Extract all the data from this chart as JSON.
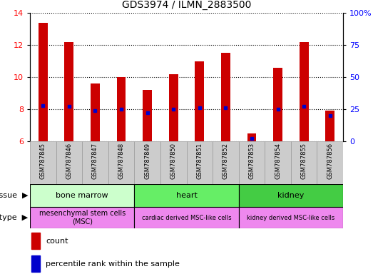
{
  "title": "GDS3974 / ILMN_2883500",
  "samples": [
    "GSM787845",
    "GSM787846",
    "GSM787847",
    "GSM787848",
    "GSM787849",
    "GSM787850",
    "GSM787851",
    "GSM787852",
    "GSM787853",
    "GSM787854",
    "GSM787855",
    "GSM787856"
  ],
  "count_values": [
    13.4,
    12.2,
    9.6,
    10.0,
    9.2,
    10.2,
    11.0,
    11.5,
    6.5,
    10.6,
    12.2,
    7.9
  ],
  "percentile_values": [
    28,
    27,
    24,
    25,
    22,
    25,
    26,
    26,
    2,
    25,
    27,
    20
  ],
  "ylim_left": [
    6,
    14
  ],
  "ylim_right": [
    0,
    100
  ],
  "yticks_left": [
    6,
    8,
    10,
    12,
    14
  ],
  "yticks_right": [
    0,
    25,
    50,
    75,
    100
  ],
  "bar_color": "#cc0000",
  "dot_color": "#0000cc",
  "bar_width": 0.35,
  "tissue_groups": [
    {
      "label": "bone marrow",
      "start": 0,
      "end": 3,
      "color": "#ccffcc"
    },
    {
      "label": "heart",
      "start": 4,
      "end": 7,
      "color": "#66ee66"
    },
    {
      "label": "kidney",
      "start": 8,
      "end": 11,
      "color": "#44cc44"
    }
  ],
  "celltype_groups": [
    {
      "label": "mesenchymal stem cells\n(MSC)",
      "start": 0,
      "end": 3,
      "color": "#ee88ee"
    },
    {
      "label": "cardiac derived MSC-like cells",
      "start": 4,
      "end": 7,
      "color": "#ee88ee"
    },
    {
      "label": "kidney derived MSC-like cells",
      "start": 8,
      "end": 11,
      "color": "#ee88ee"
    }
  ],
  "tissue_label": "tissue",
  "celltype_label": "cell type",
  "legend_count": "count",
  "legend_pct": "percentile rank within the sample",
  "axis_base": 6.0,
  "sample_box_color": "#cccccc",
  "left_label_color": "#888888"
}
